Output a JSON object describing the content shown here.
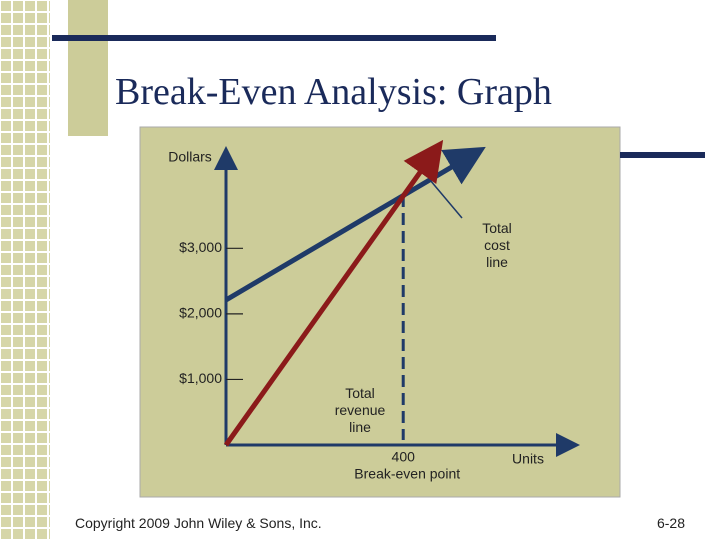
{
  "chart_data": {
    "type": "line",
    "title": "Break-Even Analysis: Graph",
    "y_label": "Dollars",
    "x_label": "Units",
    "annotation": "Break-even point",
    "xlim": [
      0,
      790
    ],
    "ylim": [
      0,
      4500
    ],
    "xticks": [
      {
        "value": 400,
        "label": "400"
      }
    ],
    "yticks": [
      {
        "value": 1000,
        "label": "$1,000"
      },
      {
        "value": 2000,
        "label": "$2,000"
      },
      {
        "value": 3000,
        "label": "$3,000"
      }
    ],
    "series": [
      {
        "name": "Total cost line",
        "color": "#1f3a68",
        "x": [
          0,
          567
        ],
        "values": [
          2212,
          4470
        ]
      },
      {
        "name": "Total revenue line",
        "color": "#8b1a1a",
        "x": [
          0,
          477
        ],
        "values": [
          0,
          4530
        ]
      }
    ]
  },
  "footer": {
    "copyright": "Copyright 2009 John Wiley & Sons, Inc.",
    "page": "6-28"
  }
}
